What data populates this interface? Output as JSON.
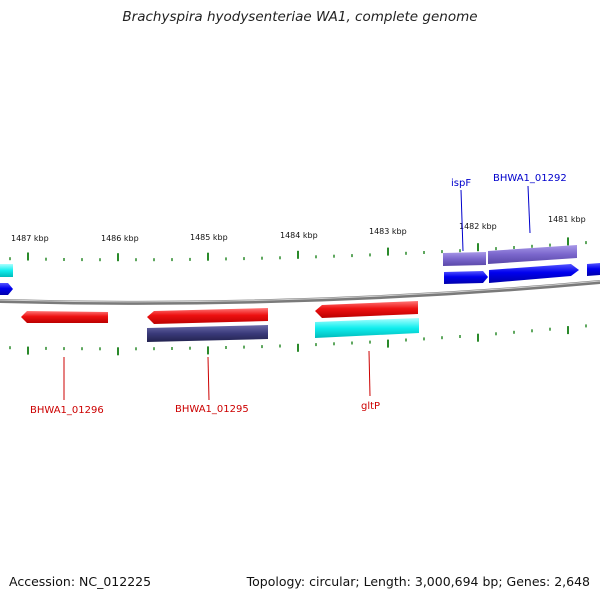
{
  "title": "Brachyspira hyodysenteriae WA1, complete genome",
  "footer": {
    "accession": "Accession: NC_012225",
    "summary": "Topology: circular; Length: 3,000,694 bp; Genes: 2,648"
  },
  "ruler": {
    "labels": [
      "1487 kbp",
      "1486 kbp",
      "1485 kbp",
      "1484 kbp",
      "1483 kbp",
      "1482 kbp",
      "1481 kbp"
    ]
  },
  "gene_labels": {
    "ispF": "ispF",
    "bhwa1_01292": "BHWA1_01292",
    "bhwa1_01296": "BHWA1_01296",
    "bhwa1_01295": "BHWA1_01295",
    "gltP": "gltP"
  },
  "colors": {
    "forward_gene": "#0000ee",
    "reverse_gene": "#ee1111",
    "cds_forward": "#7a66cc",
    "cds_reverse": "#3a3a7a",
    "rna": "#11eeee",
    "tick": "#2a8a2a",
    "backbone": "#888888",
    "label_forward": "#0000cc",
    "label_reverse": "#cc0000"
  }
}
